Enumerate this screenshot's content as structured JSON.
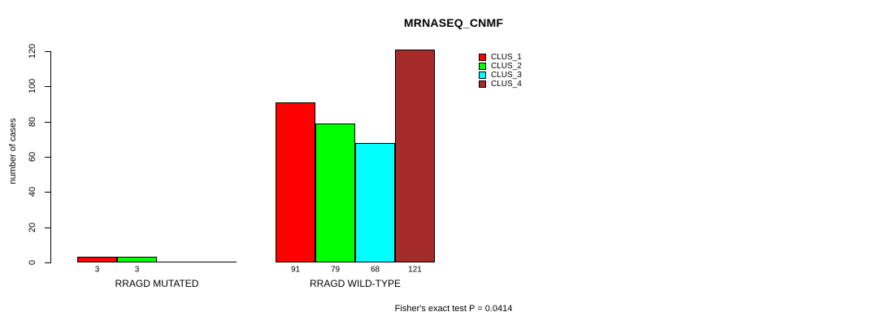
{
  "chart_data": {
    "type": "bar",
    "title": "MRNASEQ_CNMF",
    "ylabel": "number of cases",
    "xlabel": "",
    "ylim": [
      0,
      120
    ],
    "yticks": [
      0,
      20,
      40,
      60,
      80,
      100,
      120
    ],
    "categories": [
      "RRAGD MUTATED",
      "RRAGD WILD-TYPE"
    ],
    "series": [
      {
        "name": "CLUS_1",
        "color": "#FF0000",
        "values": [
          3,
          91
        ]
      },
      {
        "name": "CLUS_2",
        "color": "#00FF00",
        "values": [
          3,
          79
        ]
      },
      {
        "name": "CLUS_3",
        "color": "#00FFFF",
        "values": [
          0,
          68
        ]
      },
      {
        "name": "CLUS_4",
        "color": "#A52A2A",
        "values": [
          0,
          121
        ]
      }
    ],
    "bar_labels": [
      [
        "3",
        "3",
        "",
        ""
      ],
      [
        "91",
        "79",
        "68",
        "121"
      ]
    ],
    "annotation": "Fisher's exact test P = 0.0414",
    "legend": {
      "position": "top-right",
      "entries": [
        "CLUS_1",
        "CLUS_2",
        "CLUS_3",
        "CLUS_4"
      ]
    },
    "grid": false,
    "background": "#FFFFFF"
  }
}
